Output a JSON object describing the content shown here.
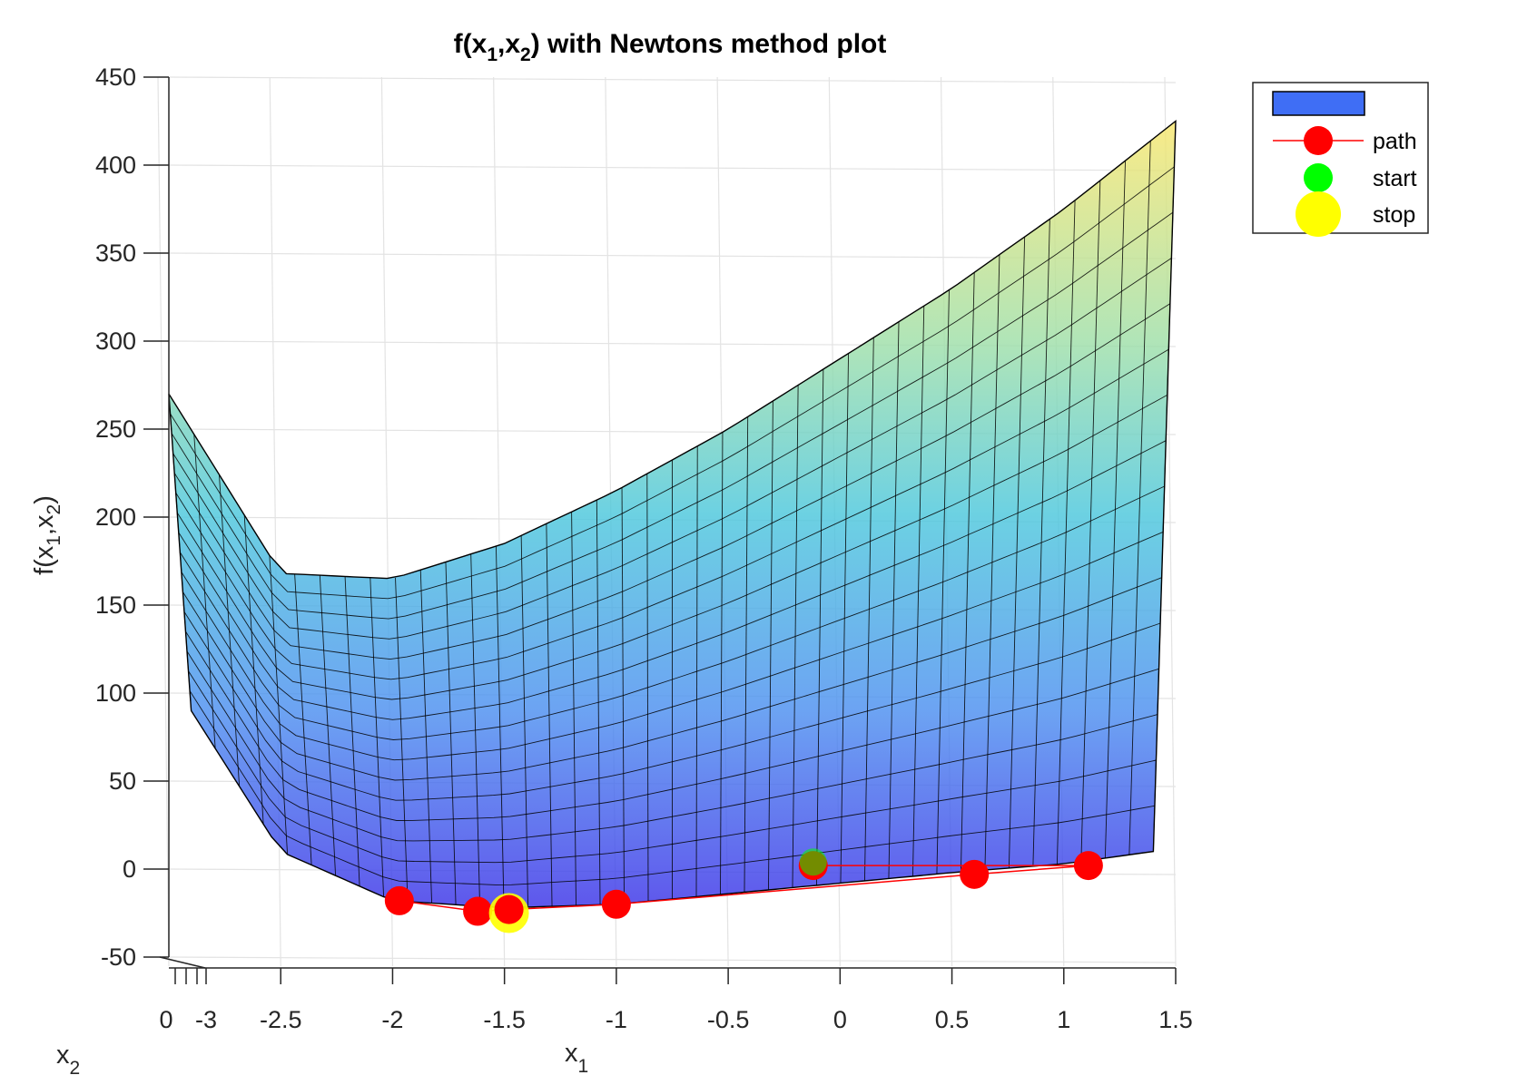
{
  "chart_data": {
    "type": "surface",
    "title": {
      "main": "f(x",
      "s1": "1",
      "mid": ",x",
      "s2": "2",
      "tail": ") with Newtons method plot"
    },
    "xlabel": {
      "base": "x",
      "sub": "1"
    },
    "x2label": {
      "base": "x",
      "sub": "2"
    },
    "zlabel": {
      "pre": "f(x",
      "s1": "1",
      "mid": ",x",
      "s2": "2",
      "tail": ")"
    },
    "xlim": [
      -3,
      1.5
    ],
    "zlim": [
      -50,
      450
    ],
    "x_ticks": [
      "-3",
      "-2.5",
      "-2",
      "-1.5",
      "-1",
      "-0.5",
      "0",
      "0.5",
      "1",
      "1.5"
    ],
    "x_tick_values": [
      -3,
      -2.5,
      -2,
      -1.5,
      -1,
      -0.5,
      0,
      0.5,
      1,
      1.5
    ],
    "x2_ticks": [
      "0"
    ],
    "z_ticks": [
      "450",
      "400",
      "350",
      "300",
      "250",
      "200",
      "150",
      "100",
      "50",
      "0",
      "-50"
    ],
    "z_tick_values": [
      450,
      400,
      350,
      300,
      250,
      200,
      150,
      100,
      50,
      0,
      -50
    ],
    "grid": true,
    "legend_position": "outside-top-right",
    "surface_back_edge": {
      "x": [
        -3,
        -2.5,
        -2,
        -1.5,
        -1,
        -0.5,
        0,
        0.5,
        1,
        1.5
      ],
      "z": [
        270,
        168,
        165,
        185,
        215,
        250,
        290,
        330,
        375,
        425
      ]
    },
    "surface_front_edge": {
      "x": [
        -2.9,
        -2.5,
        -2,
        -1.5,
        -1,
        -0.5,
        0,
        0.5,
        1,
        1.4
      ],
      "z": [
        90,
        10,
        -18,
        -22,
        -20,
        -14,
        -8,
        -2,
        3,
        10
      ]
    },
    "series": [
      {
        "name": "",
        "kind": "surface",
        "color": "#3f6ef5"
      },
      {
        "name": "path",
        "kind": "line+markers",
        "color": "#ff0000",
        "x": [
          -0.12,
          1.11,
          0.6,
          -1.0,
          -1.48,
          -1.62,
          -1.97
        ],
        "z": [
          2,
          2,
          -3,
          -20,
          -23,
          -24,
          -18
        ]
      },
      {
        "name": "start",
        "kind": "marker",
        "color": "#00ff00",
        "x": [
          -0.12
        ],
        "z": [
          4
        ]
      },
      {
        "name": "stop",
        "kind": "marker",
        "color": "#ffff00",
        "x": [
          -1.48
        ],
        "z": [
          -25
        ]
      }
    ]
  }
}
